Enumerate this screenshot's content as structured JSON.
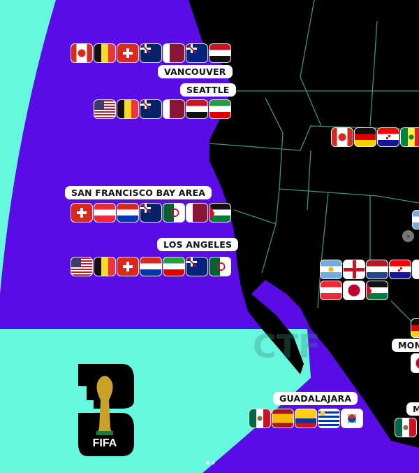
{
  "colors": {
    "ocean": "#5a0ce6",
    "accent": "#66f7df",
    "land": "#000000",
    "borders": "#3f8f86"
  },
  "cities": [
    {
      "id": "vancouver",
      "label": "VANCOUVER",
      "flags": [
        "ca",
        "be",
        "ch",
        "au",
        "qa",
        "nz",
        "eg"
      ]
    },
    {
      "id": "seattle",
      "label": "SEATTLE",
      "flags": [
        "us",
        "be",
        "au",
        "qa",
        "eg",
        "ir"
      ]
    },
    {
      "id": "sf",
      "label": "SAN FRANCISCO BAY AREA",
      "flags": [
        "ch",
        "at",
        "py",
        "au",
        "dz",
        "qa",
        "jo"
      ]
    },
    {
      "id": "la",
      "label": "LOS ANGELES",
      "flags": [
        "us",
        "be",
        "ch",
        "py",
        "ir",
        "nz",
        "dz"
      ]
    },
    {
      "id": "guadalajara",
      "label": "GUADALAJARA",
      "flags": [
        "mx",
        "es",
        "co",
        "uy",
        "kr"
      ]
    },
    {
      "id": "monterrey",
      "label": "MON",
      "flags": []
    },
    {
      "id": "mexico",
      "label": "M",
      "flags": [
        "mx"
      ]
    }
  ],
  "other_flags": {
    "north": [
      "ca",
      "de",
      "hr",
      "sn"
    ],
    "central_a": [
      "ar",
      "en",
      "nl",
      "hr",
      "white"
    ],
    "central_b": [
      "at",
      "jp",
      "jo"
    ]
  },
  "watermark": "CTF",
  "logo": {
    "text": "FIFA",
    "number": "26"
  },
  "next_button_icon": "chevron-right-icon",
  "pagination": {
    "pages": 2,
    "current": 1
  }
}
